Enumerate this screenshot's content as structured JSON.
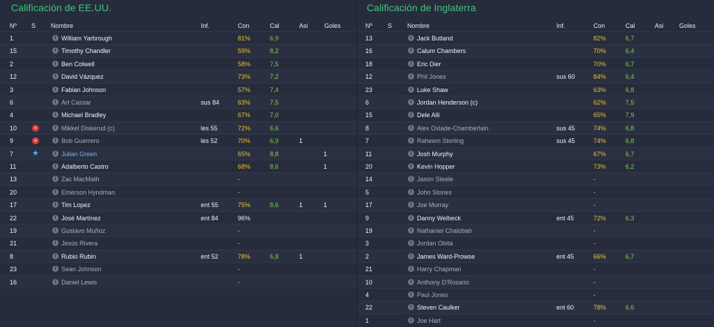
{
  "left": {
    "title": "Calificación de EE.UU.",
    "headers": {
      "num": "Nº",
      "s": "S",
      "name": "Nombre",
      "inf": "Inf.",
      "con": "Con",
      "cal": "Cal",
      "asi": "Asi",
      "goles": "Goles"
    },
    "rows": [
      {
        "num": "1",
        "name": "William Yarbrough",
        "inf": "",
        "con": "81%",
        "cal": "6,9",
        "asi": "",
        "goles": "",
        "style": "bright",
        "con_style": "yellow",
        "s": ""
      },
      {
        "num": "15",
        "name": "Timothy Chandler",
        "inf": "",
        "con": "59%",
        "cal": "8,2",
        "asi": "",
        "goles": "",
        "style": "bright",
        "con_style": "yellow",
        "s": ""
      },
      {
        "num": "2",
        "name": "Ben Colwell",
        "inf": "",
        "con": "58%",
        "cal": "7,5",
        "asi": "",
        "goles": "",
        "style": "bright",
        "con_style": "yellow",
        "s": ""
      },
      {
        "num": "12",
        "name": "David Vázquez",
        "inf": "",
        "con": "73%",
        "cal": "7,2",
        "asi": "",
        "goles": "",
        "style": "bright",
        "con_style": "yellow",
        "s": ""
      },
      {
        "num": "3",
        "name": "Fabian Johnson",
        "inf": "",
        "con": "57%",
        "cal": "7,4",
        "asi": "",
        "goles": "",
        "style": "bright",
        "con_style": "yellow",
        "s": ""
      },
      {
        "num": "6",
        "name": "Art Cassar",
        "inf": "sus 84",
        "con": "63%",
        "cal": "7,5",
        "asi": "",
        "goles": "",
        "style": "dim",
        "con_style": "yellow",
        "s": ""
      },
      {
        "num": "4",
        "name": "Michael Bradley",
        "inf": "",
        "con": "67%",
        "cal": "7,0",
        "asi": "",
        "goles": "",
        "style": "bright",
        "con_style": "yellow",
        "s": ""
      },
      {
        "num": "10",
        "name": "Mikkel Diskerud (c)",
        "inf": "les 55",
        "con": "72%",
        "cal": "6,6",
        "asi": "",
        "goles": "",
        "style": "dim",
        "con_style": "yellow",
        "s": "red"
      },
      {
        "num": "9",
        "name": "Bob Guerrero",
        "inf": "les 52",
        "con": "70%",
        "cal": "6,9",
        "asi": "1",
        "goles": "",
        "style": "dim",
        "con_style": "yellow",
        "s": "red"
      },
      {
        "num": "7",
        "name": "Julian Green",
        "inf": "",
        "con": "65%",
        "cal": "8,8",
        "asi": "",
        "goles": "1",
        "style": "blue",
        "con_style": "yellow",
        "s": "star"
      },
      {
        "num": "11",
        "name": "Adalberto Castro",
        "inf": "",
        "con": "68%",
        "cal": "8,6",
        "asi": "",
        "goles": "1",
        "style": "bright",
        "con_style": "yellow",
        "s": ""
      },
      {
        "num": "13",
        "name": "Zac MacMath",
        "inf": "",
        "con": "-",
        "cal": "",
        "asi": "",
        "goles": "",
        "style": "dim",
        "con_style": "dash",
        "s": ""
      },
      {
        "num": "20",
        "name": "Emerson Hyndman",
        "inf": "",
        "con": "-",
        "cal": "",
        "asi": "",
        "goles": "",
        "style": "dim",
        "con_style": "dash",
        "s": ""
      },
      {
        "num": "17",
        "name": "Tim Lopez",
        "inf": "ent 55",
        "con": "75%",
        "cal": "8,6",
        "asi": "1",
        "goles": "1",
        "style": "bright",
        "con_style": "yellow",
        "s": ""
      },
      {
        "num": "22",
        "name": "José Martínez",
        "inf": "ent 84",
        "con": "96%",
        "cal": "",
        "asi": "",
        "goles": "",
        "style": "bright",
        "con_style": "white",
        "s": ""
      },
      {
        "num": "19",
        "name": "Gustavo Muñoz",
        "inf": "",
        "con": "-",
        "cal": "",
        "asi": "",
        "goles": "",
        "style": "dim",
        "con_style": "dash",
        "s": ""
      },
      {
        "num": "21",
        "name": "Jesús Rivera",
        "inf": "",
        "con": "-",
        "cal": "",
        "asi": "",
        "goles": "",
        "style": "dim",
        "con_style": "dash",
        "s": ""
      },
      {
        "num": "8",
        "name": "Rubio Rubin",
        "inf": "ent 52",
        "con": "78%",
        "cal": "6,8",
        "asi": "1",
        "goles": "",
        "style": "bright",
        "con_style": "yellow",
        "s": ""
      },
      {
        "num": "23",
        "name": "Sean Johnson",
        "inf": "",
        "con": "-",
        "cal": "",
        "asi": "",
        "goles": "",
        "style": "dim",
        "con_style": "dash",
        "s": ""
      },
      {
        "num": "16",
        "name": "Daniel Lewis",
        "inf": "",
        "con": "-",
        "cal": "",
        "asi": "",
        "goles": "",
        "style": "dim",
        "con_style": "dash",
        "s": ""
      }
    ]
  },
  "right": {
    "title": "Calificación de Inglaterra",
    "headers": {
      "num": "Nº",
      "s": "S",
      "name": "Nombre",
      "inf": "Inf.",
      "con": "Con",
      "cal": "Cal",
      "asi": "Asi",
      "goles": "Goles"
    },
    "rows": [
      {
        "num": "13",
        "name": "Jack Butland",
        "inf": "",
        "con": "82%",
        "cal": "6,7",
        "style": "bright",
        "con_style": "yellow"
      },
      {
        "num": "16",
        "name": "Calum Chambers",
        "inf": "",
        "con": "70%",
        "cal": "6,4",
        "style": "bright",
        "con_style": "yellow"
      },
      {
        "num": "18",
        "name": "Eric Dier",
        "inf": "",
        "con": "70%",
        "cal": "6,7",
        "style": "bright",
        "con_style": "yellow"
      },
      {
        "num": "12",
        "name": "Phil Jones",
        "inf": "sus 60",
        "con": "84%",
        "cal": "6,4",
        "style": "dim",
        "con_style": "yellow"
      },
      {
        "num": "23",
        "name": "Luke Shaw",
        "inf": "",
        "con": "63%",
        "cal": "6,8",
        "style": "bright",
        "con_style": "yellow"
      },
      {
        "num": "6",
        "name": "Jordan Henderson (c)",
        "inf": "",
        "con": "62%",
        "cal": "7,5",
        "style": "bright",
        "con_style": "yellow"
      },
      {
        "num": "15",
        "name": "Dele Alli",
        "inf": "",
        "con": "65%",
        "cal": "7,9",
        "style": "bright",
        "con_style": "yellow"
      },
      {
        "num": "8",
        "name": "Alex Oxlade-Chamberlain",
        "inf": "sus 45",
        "con": "74%",
        "cal": "6,8",
        "style": "dim",
        "con_style": "yellow"
      },
      {
        "num": "7",
        "name": "Raheem Sterling",
        "inf": "sus 45",
        "con": "74%",
        "cal": "6,8",
        "style": "dim",
        "con_style": "yellow"
      },
      {
        "num": "11",
        "name": "Josh Murphy",
        "inf": "",
        "con": "67%",
        "cal": "6,7",
        "style": "bright",
        "con_style": "yellow"
      },
      {
        "num": "20",
        "name": "Kevin Hopper",
        "inf": "",
        "con": "73%",
        "cal": "6,2",
        "style": "bright",
        "con_style": "yellow"
      },
      {
        "num": "14",
        "name": "Jason Steele",
        "inf": "",
        "con": "-",
        "cal": "",
        "style": "dim",
        "con_style": "dash"
      },
      {
        "num": "5",
        "name": "John Stones",
        "inf": "",
        "con": "-",
        "cal": "",
        "style": "dim",
        "con_style": "dash"
      },
      {
        "num": "17",
        "name": "Joe Murray",
        "inf": "",
        "con": "-",
        "cal": "",
        "style": "dim",
        "con_style": "dash"
      },
      {
        "num": "9",
        "name": "Danny Welbeck",
        "inf": "ent 45",
        "con": "72%",
        "cal": "6,3",
        "style": "bright",
        "con_style": "yellow"
      },
      {
        "num": "19",
        "name": "Nathaniel Chalobah",
        "inf": "",
        "con": "-",
        "cal": "",
        "style": "dim",
        "con_style": "dash"
      },
      {
        "num": "3",
        "name": "Jordan Obita",
        "inf": "",
        "con": "-",
        "cal": "",
        "style": "dim",
        "con_style": "dash"
      },
      {
        "num": "2",
        "name": "James Ward-Prowse",
        "inf": "ent 45",
        "con": "66%",
        "cal": "6,7",
        "style": "bright",
        "con_style": "yellow"
      },
      {
        "num": "21",
        "name": "Harry Chapman",
        "inf": "",
        "con": "-",
        "cal": "",
        "style": "dim",
        "con_style": "dash"
      },
      {
        "num": "10",
        "name": "Anthony D'Rosario",
        "inf": "",
        "con": "-",
        "cal": "",
        "style": "dim",
        "con_style": "dash"
      },
      {
        "num": "4",
        "name": "Paul Jones",
        "inf": "",
        "con": "-",
        "cal": "",
        "style": "dim",
        "con_style": "dash"
      },
      {
        "num": "22",
        "name": "Steven Caulker",
        "inf": "ent 60",
        "con": "78%",
        "cal": "6,6",
        "style": "bright",
        "con_style": "yellow"
      },
      {
        "num": "1",
        "name": "Joe Hart",
        "inf": "",
        "con": "-",
        "cal": "",
        "style": "dim",
        "con_style": "dash"
      }
    ]
  }
}
